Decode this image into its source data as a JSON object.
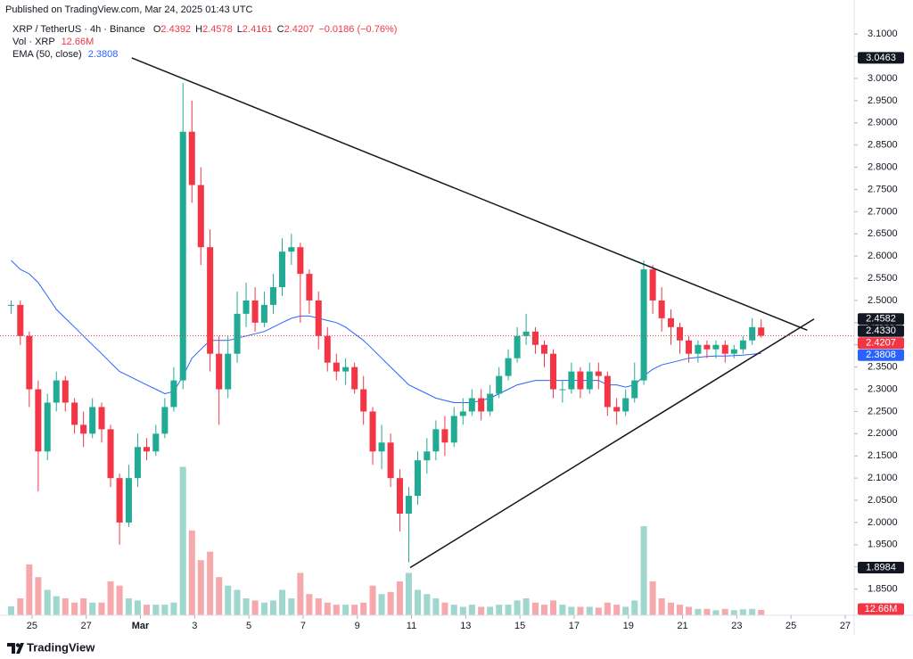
{
  "header": {
    "published": "Published on TradingView.com, Mar 24, 2025 01:43 UTC"
  },
  "legend": {
    "symbol": "XRP / TetherUS · 4h · Binance",
    "ohlc": [
      {
        "label": "O",
        "value": 2.4392
      },
      {
        "label": "H",
        "value": 2.4578
      },
      {
        "label": "L",
        "value": 2.4161
      },
      {
        "label": "C",
        "value": 2.4207
      }
    ],
    "change": {
      "value": -0.0186,
      "label": "−0.0186"
    },
    "change_pct": {
      "value": -0.76,
      "label": "(−0.76%)"
    },
    "volume_name": "Vol · XRP",
    "volume": {
      "value": 12.66,
      "label": "12.66M"
    },
    "ema_name": "EMA (50, close)",
    "ema": 2.3808
  },
  "footer": {
    "brand": "TradingView"
  },
  "chart_data": {
    "type": "candlestick",
    "up_color": "#22ab94",
    "down_color": "#f23645",
    "volume_up_color": "#9fd7cf",
    "volume_down_color": "#f6a9ad",
    "grid": false,
    "xlim": [
      -0.18,
      31.33
    ],
    "ylim": [
      1.791,
      3.1365
    ],
    "vlim": [
      0,
      700
    ],
    "xticks": [
      {
        "value": 1,
        "label": "25"
      },
      {
        "value": 3,
        "label": "27"
      },
      {
        "value": 5,
        "label": "Mar"
      },
      {
        "value": 7,
        "label": "3"
      },
      {
        "value": 9,
        "label": "5"
      },
      {
        "value": 11,
        "label": "7"
      },
      {
        "value": 13,
        "label": "9"
      },
      {
        "value": 15,
        "label": "11"
      },
      {
        "value": 17,
        "label": "13"
      },
      {
        "value": 19,
        "label": "15"
      },
      {
        "value": 21,
        "label": "17"
      },
      {
        "value": 23,
        "label": "19"
      },
      {
        "value": 25,
        "label": "21"
      },
      {
        "value": 27,
        "label": "23"
      },
      {
        "value": 29,
        "label": "25"
      },
      {
        "value": 31,
        "label": "27"
      }
    ],
    "yticks": [
      {
        "value": 3.1,
        "label": "3.1000"
      },
      {
        "value": 3.05,
        "label": "3.0500"
      },
      {
        "value": 3.0,
        "label": "3.0000"
      },
      {
        "value": 2.95,
        "label": "2.9500"
      },
      {
        "value": 2.9,
        "label": "2.9000"
      },
      {
        "value": 2.85,
        "label": "2.8500"
      },
      {
        "value": 2.8,
        "label": "2.8000"
      },
      {
        "value": 2.75,
        "label": "2.7500"
      },
      {
        "value": 2.7,
        "label": "2.7000"
      },
      {
        "value": 2.65,
        "label": "2.6500"
      },
      {
        "value": 2.6,
        "label": "2.6000"
      },
      {
        "value": 2.55,
        "label": "2.5500"
      },
      {
        "value": 2.5,
        "label": "2.5000"
      },
      {
        "value": 2.45,
        "label": "2.4500"
      },
      {
        "value": 2.4,
        "label": "2.4000"
      },
      {
        "value": 2.35,
        "label": "2.3500"
      },
      {
        "value": 2.3,
        "label": "2.3000"
      },
      {
        "value": 2.25,
        "label": "2.2500"
      },
      {
        "value": 2.2,
        "label": "2.2000"
      },
      {
        "value": 2.15,
        "label": "2.1500"
      },
      {
        "value": 2.1,
        "label": "2.1000"
      },
      {
        "value": 2.05,
        "label": "2.0500"
      },
      {
        "value": 2.0,
        "label": "2.0000"
      },
      {
        "value": 1.95,
        "label": "1.9500"
      },
      {
        "value": 1.9,
        "label": "1.9000"
      },
      {
        "value": 1.85,
        "label": "1.8500"
      }
    ],
    "x": [
      0.23,
      0.57,
      0.9,
      1.23,
      1.57,
      1.9,
      2.23,
      2.57,
      2.9,
      3.23,
      3.57,
      3.9,
      4.23,
      4.57,
      4.9,
      5.23,
      5.57,
      5.9,
      6.23,
      6.57,
      6.9,
      7.23,
      7.57,
      7.9,
      8.23,
      8.57,
      8.9,
      9.23,
      9.57,
      9.9,
      10.23,
      10.57,
      10.9,
      11.23,
      11.57,
      11.9,
      12.23,
      12.57,
      12.9,
      13.23,
      13.57,
      13.9,
      14.23,
      14.57,
      14.9,
      15.23,
      15.57,
      15.9,
      16.23,
      16.57,
      16.9,
      17.23,
      17.57,
      17.9,
      18.23,
      18.57,
      18.9,
      19.23,
      19.57,
      19.9,
      20.23,
      20.57,
      20.9,
      21.23,
      21.57,
      21.9,
      22.23,
      22.57,
      22.9,
      23.23,
      23.57,
      23.9,
      24.23,
      24.57,
      24.9,
      25.23,
      25.57,
      25.9,
      26.23,
      26.57,
      26.9,
      27.23,
      27.57,
      27.9
    ],
    "open": [
      2.49,
      2.49,
      2.42,
      2.3,
      2.16,
      2.27,
      2.32,
      2.27,
      2.22,
      2.2,
      2.26,
      2.21,
      2.1,
      2.0,
      2.1,
      2.17,
      2.16,
      2.2,
      2.26,
      2.32,
      2.88,
      2.76,
      2.62,
      2.38,
      2.3,
      2.38,
      2.47,
      2.5,
      2.45,
      2.49,
      2.53,
      2.61,
      2.62,
      2.56,
      2.5,
      2.42,
      2.36,
      2.34,
      2.35,
      2.3,
      2.25,
      2.16,
      2.18,
      2.1,
      2.02,
      2.06,
      2.14,
      2.16,
      2.21,
      2.18,
      2.24,
      2.25,
      2.28,
      2.25,
      2.29,
      2.33,
      2.37,
      2.42,
      2.43,
      2.4,
      2.38,
      2.3,
      2.3,
      2.34,
      2.3,
      2.34,
      2.33,
      2.26,
      2.25,
      2.28,
      2.32,
      2.57,
      2.5,
      2.46,
      2.44,
      2.41,
      2.38,
      2.4,
      2.39,
      2.4,
      2.38,
      2.39,
      2.41,
      2.4392
    ],
    "high": [
      2.5,
      2.5,
      2.43,
      2.32,
      2.29,
      2.34,
      2.33,
      2.28,
      2.25,
      2.28,
      2.27,
      2.22,
      2.11,
      2.13,
      2.2,
      2.19,
      2.22,
      2.28,
      2.35,
      2.99,
      2.95,
      2.8,
      2.66,
      2.42,
      2.42,
      2.52,
      2.54,
      2.53,
      2.52,
      2.56,
      2.64,
      2.65,
      2.63,
      2.57,
      2.52,
      2.44,
      2.38,
      2.37,
      2.36,
      2.33,
      2.26,
      2.22,
      2.2,
      2.12,
      2.08,
      2.16,
      2.19,
      2.23,
      2.24,
      2.26,
      2.28,
      2.3,
      2.3,
      2.31,
      2.35,
      2.39,
      2.44,
      2.47,
      2.44,
      2.41,
      2.39,
      2.32,
      2.36,
      2.35,
      2.36,
      2.36,
      2.34,
      2.28,
      2.3,
      2.36,
      2.59,
      2.58,
      2.53,
      2.48,
      2.45,
      2.42,
      2.41,
      2.41,
      2.41,
      2.41,
      2.4,
      2.42,
      2.46,
      2.4578
    ],
    "low": [
      2.47,
      2.4,
      2.26,
      2.07,
      2.14,
      2.25,
      2.25,
      2.2,
      2.17,
      2.19,
      2.18,
      2.08,
      1.95,
      1.99,
      2.08,
      2.14,
      2.15,
      2.19,
      2.25,
      2.3,
      2.72,
      2.58,
      2.34,
      2.22,
      2.28,
      2.36,
      2.44,
      2.43,
      2.44,
      2.47,
      2.51,
      2.58,
      2.45,
      2.47,
      2.39,
      2.34,
      2.32,
      2.31,
      2.29,
      2.22,
      2.13,
      2.12,
      2.08,
      1.98,
      1.91,
      2.04,
      2.11,
      2.14,
      2.15,
      2.17,
      2.22,
      2.24,
      2.23,
      2.24,
      2.28,
      2.32,
      2.36,
      2.4,
      2.38,
      2.35,
      2.28,
      2.27,
      2.29,
      2.28,
      2.29,
      2.3,
      2.24,
      2.22,
      2.24,
      2.27,
      2.31,
      2.47,
      2.43,
      2.4,
      2.38,
      2.36,
      2.36,
      2.37,
      2.37,
      2.36,
      2.37,
      2.38,
      2.4,
      2.4161
    ],
    "close": [
      2.49,
      2.42,
      2.3,
      2.16,
      2.27,
      2.32,
      2.27,
      2.22,
      2.2,
      2.26,
      2.21,
      2.1,
      2.0,
      2.1,
      2.17,
      2.16,
      2.2,
      2.26,
      2.32,
      2.88,
      2.76,
      2.62,
      2.38,
      2.3,
      2.38,
      2.47,
      2.5,
      2.45,
      2.49,
      2.53,
      2.61,
      2.62,
      2.56,
      2.5,
      2.42,
      2.36,
      2.34,
      2.35,
      2.3,
      2.25,
      2.16,
      2.18,
      2.1,
      2.02,
      2.06,
      2.14,
      2.16,
      2.21,
      2.18,
      2.24,
      2.25,
      2.28,
      2.25,
      2.29,
      2.33,
      2.37,
      2.42,
      2.43,
      2.4,
      2.38,
      2.3,
      2.3,
      2.34,
      2.3,
      2.34,
      2.33,
      2.26,
      2.25,
      2.28,
      2.32,
      2.57,
      2.5,
      2.46,
      2.44,
      2.41,
      2.38,
      2.4,
      2.39,
      2.4,
      2.38,
      2.39,
      2.41,
      2.44,
      2.4207
    ],
    "volume": [
      21,
      40,
      120,
      90,
      60,
      45,
      40,
      30,
      40,
      30,
      30,
      80,
      70,
      40,
      35,
      25,
      25,
      25,
      30,
      350,
      200,
      130,
      150,
      90,
      70,
      60,
      40,
      35,
      30,
      35,
      60,
      40,
      100,
      50,
      40,
      30,
      25,
      25,
      25,
      30,
      70,
      50,
      55,
      80,
      100,
      60,
      50,
      40,
      30,
      25,
      20,
      25,
      20,
      20,
      25,
      25,
      35,
      40,
      30,
      25,
      35,
      25,
      20,
      20,
      20,
      18,
      30,
      25,
      20,
      35,
      210,
      80,
      40,
      30,
      25,
      20,
      15,
      15,
      12,
      15,
      12,
      14,
      15,
      12.66
    ],
    "ema": {
      "color": "#2962ff",
      "values": [
        2.59,
        2.57,
        2.56,
        2.54,
        2.51,
        2.48,
        2.46,
        2.44,
        2.42,
        2.4,
        2.38,
        2.36,
        2.34,
        2.33,
        2.32,
        2.31,
        2.3,
        2.29,
        2.295,
        2.33,
        2.37,
        2.39,
        2.41,
        2.41,
        2.41,
        2.415,
        2.42,
        2.425,
        2.43,
        2.44,
        2.45,
        2.46,
        2.465,
        2.465,
        2.46,
        2.455,
        2.45,
        2.44,
        2.425,
        2.41,
        2.39,
        2.37,
        2.35,
        2.33,
        2.31,
        2.3,
        2.29,
        2.28,
        2.275,
        2.27,
        2.27,
        2.27,
        2.275,
        2.28,
        2.29,
        2.3,
        2.31,
        2.315,
        2.32,
        2.32,
        2.32,
        2.32,
        2.32,
        2.32,
        2.32,
        2.32,
        2.31,
        2.31,
        2.305,
        2.31,
        2.33,
        2.345,
        2.355,
        2.36,
        2.365,
        2.37,
        2.372,
        2.374,
        2.375,
        2.375,
        2.376,
        2.377,
        2.379,
        2.3808
      ]
    },
    "trendlines": [
      {
        "color": "#131722",
        "x": [
          4.68,
          29.6
        ],
        "y": [
          3.0463,
          2.433
        ]
      },
      {
        "color": "#131722",
        "x": [
          14.95,
          29.85
        ],
        "y": [
          1.8984,
          2.4582
        ]
      }
    ],
    "price_labels": [
      {
        "value": 3.0463,
        "label": "3.0463",
        "color": "#131722"
      },
      {
        "value": 2.4582,
        "label": "2.4582",
        "color": "#131722"
      },
      {
        "value": 2.433,
        "label": "2.4330",
        "color": "#131722"
      },
      {
        "value": 2.4207,
        "label": "2.4207",
        "color": "#f23645",
        "dotted_line": true
      },
      {
        "value": 2.3808,
        "label": "2.3808",
        "color": "#2962ff"
      },
      {
        "value": 1.8984,
        "label": "1.8984",
        "color": "#131722"
      }
    ],
    "volume_label": {
      "value": 12.66,
      "label": "12.66M",
      "color": "#f23645"
    }
  }
}
